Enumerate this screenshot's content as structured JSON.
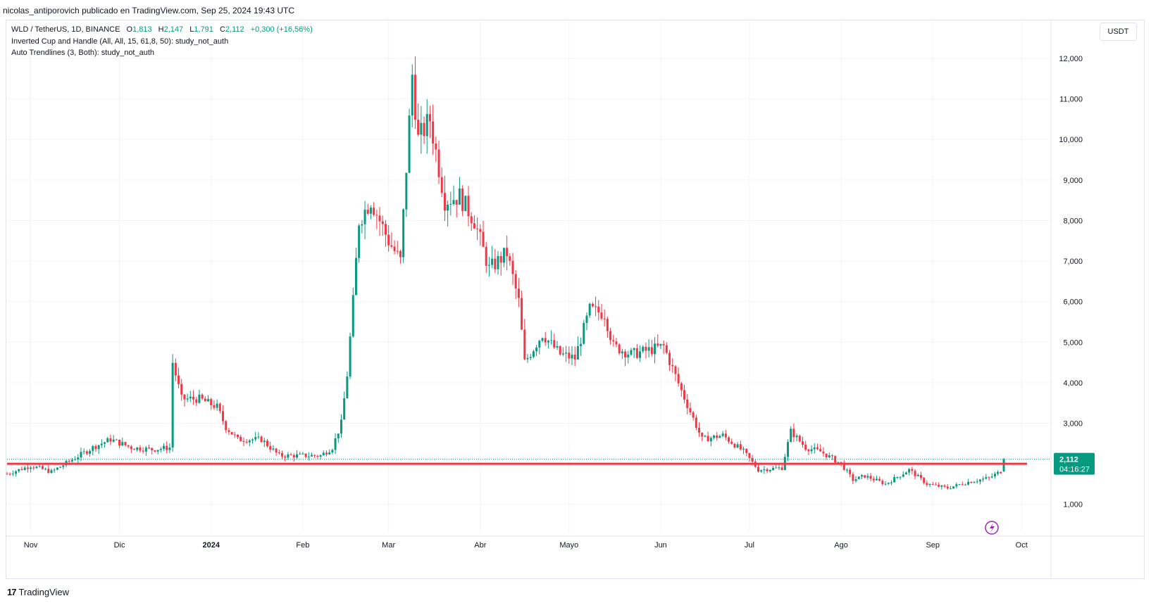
{
  "header": {
    "published_line": "nicolas_antiporovich publicado en TradingView.com, Sep 25, 2024 19:43 UTC"
  },
  "legend": {
    "symbol_line": "WLD / TetherUS, 1D, BINANCE",
    "o_label": "O",
    "o_value": "1,813",
    "h_label": "H",
    "h_value": "2,147",
    "l_label": "L",
    "l_value": "1,791",
    "c_label": "C",
    "c_value": "2,112",
    "change": "+0,300 (+16,56%)",
    "indicator1": "Inverted Cup and Handle (All, All, 15, 61,8, 50): study_not_auth",
    "indicator2": "Auto Trendlines (3, Both): study_not_auth"
  },
  "currency_button": "USDT",
  "price_tag": {
    "price": "2,112",
    "countdown": "04:16:27"
  },
  "footer": {
    "brand": "TradingView",
    "logo": "17"
  },
  "colors": {
    "up": "#089981",
    "down": "#f23645",
    "support_line": "#f23645",
    "grid": "#f0f3fa",
    "axis_text": "#131722"
  },
  "chart_data": {
    "type": "candlestick",
    "ylim": [
      0.3,
      12.4
    ],
    "yticks": [
      1,
      2,
      3,
      4,
      5,
      6,
      7,
      8,
      9,
      10,
      11,
      12
    ],
    "ytick_labels": [
      "1,000",
      "",
      "3,000",
      "4,000",
      "5,000",
      "6,000",
      "7,000",
      "8,000",
      "9,000",
      "10,000",
      "11,000",
      "12,000"
    ],
    "x_start_date": "2023-10-24",
    "x_end_date": "2024-10-10",
    "xticks": [
      {
        "date": "2023-11-01",
        "label": "Nov"
      },
      {
        "date": "2023-12-01",
        "label": "Dic"
      },
      {
        "date": "2024-01-01",
        "label": "2024"
      },
      {
        "date": "2024-02-01",
        "label": "Feb"
      },
      {
        "date": "2024-03-01",
        "label": "Mar"
      },
      {
        "date": "2024-04-01",
        "label": "Abr"
      },
      {
        "date": "2024-05-01",
        "label": "Mayo"
      },
      {
        "date": "2024-06-01",
        "label": "Jun"
      },
      {
        "date": "2024-07-01",
        "label": "Jul"
      },
      {
        "date": "2024-08-01",
        "label": "Ago"
      },
      {
        "date": "2024-09-01",
        "label": "Sep"
      },
      {
        "date": "2024-10-01",
        "label": "Oct"
      }
    ],
    "support_level": 2.0,
    "last_price": 2.112,
    "closes": [
      {
        "date": "2023-10-24",
        "close": 1.75
      },
      {
        "date": "2023-11-01",
        "close": 1.95
      },
      {
        "date": "2023-11-08",
        "close": 1.8
      },
      {
        "date": "2023-11-15",
        "close": 2.1
      },
      {
        "date": "2023-11-22",
        "close": 2.4
      },
      {
        "date": "2023-11-28",
        "close": 2.6
      },
      {
        "date": "2023-12-05",
        "close": 2.4
      },
      {
        "date": "2023-12-12",
        "close": 2.35
      },
      {
        "date": "2023-12-18",
        "close": 2.4
      },
      {
        "date": "2023-12-19",
        "close": 4.5
      },
      {
        "date": "2023-12-22",
        "close": 3.6
      },
      {
        "date": "2023-12-28",
        "close": 3.6
      },
      {
        "date": "2024-01-03",
        "close": 3.4
      },
      {
        "date": "2024-01-06",
        "close": 2.9
      },
      {
        "date": "2024-01-10",
        "close": 2.6
      },
      {
        "date": "2024-01-18",
        "close": 2.6
      },
      {
        "date": "2024-01-24",
        "close": 2.2
      },
      {
        "date": "2024-02-01",
        "close": 2.2
      },
      {
        "date": "2024-02-07",
        "close": 2.2
      },
      {
        "date": "2024-02-11",
        "close": 2.4
      },
      {
        "date": "2024-02-14",
        "close": 3.0
      },
      {
        "date": "2024-02-16",
        "close": 4.2
      },
      {
        "date": "2024-02-18",
        "close": 6.0
      },
      {
        "date": "2024-02-20",
        "close": 8.0
      },
      {
        "date": "2024-02-24",
        "close": 8.5
      },
      {
        "date": "2024-03-01",
        "close": 7.5
      },
      {
        "date": "2024-03-05",
        "close": 7.0
      },
      {
        "date": "2024-03-09",
        "close": 11.6
      },
      {
        "date": "2024-03-11",
        "close": 10.0
      },
      {
        "date": "2024-03-15",
        "close": 10.5
      },
      {
        "date": "2024-03-20",
        "close": 8.5
      },
      {
        "date": "2024-03-25",
        "close": 8.6
      },
      {
        "date": "2024-03-30",
        "close": 8.0
      },
      {
        "date": "2024-04-04",
        "close": 6.8
      },
      {
        "date": "2024-04-10",
        "close": 7.2
      },
      {
        "date": "2024-04-14",
        "close": 6.0
      },
      {
        "date": "2024-04-16",
        "close": 4.5
      },
      {
        "date": "2024-04-22",
        "close": 5.2
      },
      {
        "date": "2024-04-28",
        "close": 4.7
      },
      {
        "date": "2024-05-03",
        "close": 4.6
      },
      {
        "date": "2024-05-08",
        "close": 5.8
      },
      {
        "date": "2024-05-13",
        "close": 5.7
      },
      {
        "date": "2024-05-16",
        "close": 4.9
      },
      {
        "date": "2024-05-22",
        "close": 4.7
      },
      {
        "date": "2024-05-28",
        "close": 4.8
      },
      {
        "date": "2024-06-02",
        "close": 4.9
      },
      {
        "date": "2024-06-08",
        "close": 3.8
      },
      {
        "date": "2024-06-15",
        "close": 2.6
      },
      {
        "date": "2024-06-22",
        "close": 2.7
      },
      {
        "date": "2024-06-29",
        "close": 2.3
      },
      {
        "date": "2024-07-04",
        "close": 1.85
      },
      {
        "date": "2024-07-12",
        "close": 1.9
      },
      {
        "date": "2024-07-15",
        "close": 2.8
      },
      {
        "date": "2024-07-20",
        "close": 2.4
      },
      {
        "date": "2024-07-25",
        "close": 2.3
      },
      {
        "date": "2024-08-01",
        "close": 2.0
      },
      {
        "date": "2024-08-05",
        "close": 1.6
      },
      {
        "date": "2024-08-09",
        "close": 1.7
      },
      {
        "date": "2024-08-16",
        "close": 1.5
      },
      {
        "date": "2024-08-24",
        "close": 1.85
      },
      {
        "date": "2024-08-30",
        "close": 1.5
      },
      {
        "date": "2024-09-06",
        "close": 1.4
      },
      {
        "date": "2024-09-13",
        "close": 1.55
      },
      {
        "date": "2024-09-20",
        "close": 1.65
      },
      {
        "date": "2024-09-24",
        "close": 1.81
      },
      {
        "date": "2024-09-25",
        "close": 2.112
      }
    ]
  }
}
